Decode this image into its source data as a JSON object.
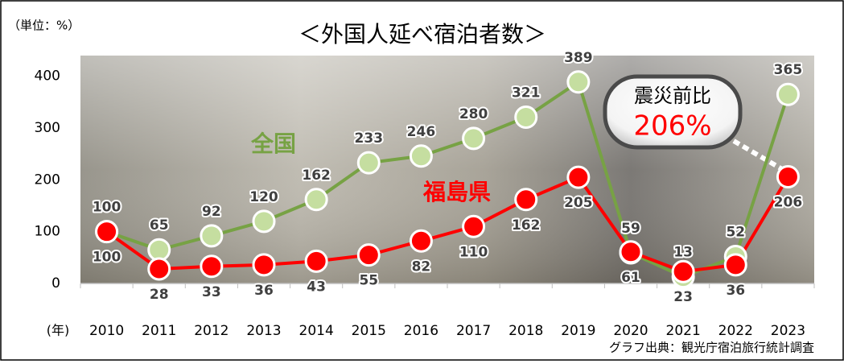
{
  "chart_data": {
    "type": "line",
    "title": "＜外国人延べ宿泊者数＞",
    "unit_label": "（単位：%）",
    "x_label": "(年)",
    "source": "グラフ出典：観光庁宿泊旅行統計調査",
    "callout": {
      "text": "震災前比",
      "value_label": "206%"
    },
    "categories": [
      "2010",
      "2011",
      "2012",
      "2013",
      "2014",
      "2015",
      "2016",
      "2017",
      "2018",
      "2019",
      "2020",
      "2021",
      "2022",
      "2023"
    ],
    "series": [
      {
        "name": "全国",
        "color": "#77a244",
        "values": [
          100,
          65,
          92,
          120,
          162,
          233,
          246,
          280,
          321,
          389,
          59,
          13,
          52,
          365
        ]
      },
      {
        "name": "福島県",
        "color": "#ff0000",
        "values": [
          100,
          28,
          33,
          36,
          43,
          55,
          82,
          110,
          162,
          205,
          61,
          23,
          36,
          206
        ]
      }
    ],
    "ylim": [
      0,
      440
    ],
    "yticks": [
      0,
      100,
      200,
      300,
      400
    ],
    "grid": false
  }
}
